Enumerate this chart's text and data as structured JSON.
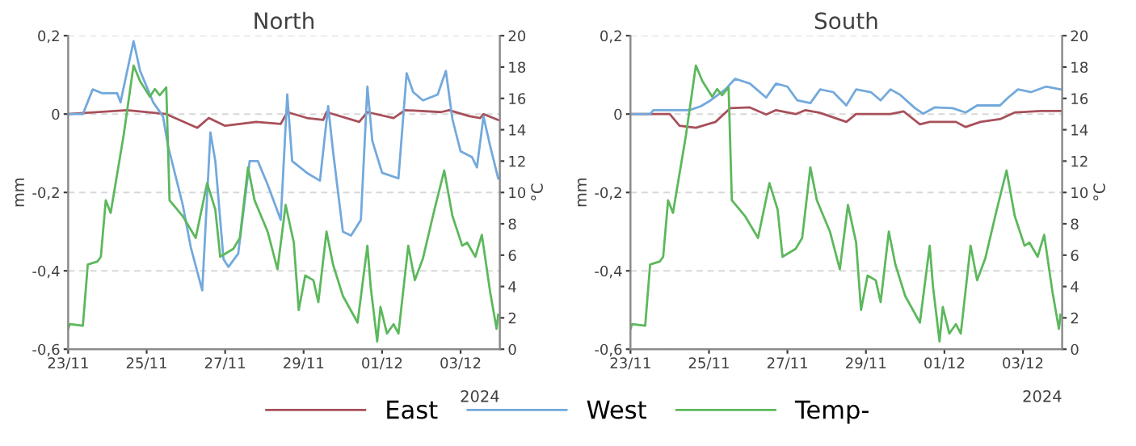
{
  "chart_data": [
    {
      "type": "line",
      "title": "North",
      "ylabel": "mm",
      "y2label": "°C",
      "annotations": [
        "2024"
      ],
      "legend": "bottom",
      "grid": "y",
      "xlim": [
        "2024-11-23",
        "2024-12-04"
      ],
      "xticks": [
        {
          "value": "2024-11-23",
          "label": "23/11"
        },
        {
          "value": "2024-11-25",
          "label": "25/11"
        },
        {
          "value": "2024-11-27",
          "label": "27/11"
        },
        {
          "value": "2024-11-29",
          "label": "29/11"
        },
        {
          "value": "2024-12-01",
          "label": "01/12"
        },
        {
          "value": "2024-12-03",
          "label": "03/12"
        }
      ],
      "ylim": [
        -0.6,
        0.2
      ],
      "yticks": [
        {
          "value": -0.6,
          "label": "-0,6"
        },
        {
          "value": -0.4,
          "label": "-0,4"
        },
        {
          "value": -0.2,
          "label": "-0,2"
        },
        0,
        {
          "value": 0.2,
          "label": "0,2"
        }
      ],
      "y2lim": [
        0,
        20
      ],
      "y2ticks": [
        0,
        2,
        4,
        6,
        8,
        10,
        12,
        14,
        16,
        18,
        20
      ],
      "series": [
        {
          "name": "East",
          "color": "#a8505a",
          "x": [
            "2024-11-23T00:00",
            "2024-11-24T12:00",
            "2024-11-25T12:00",
            "2024-11-26T07:00",
            "2024-11-26T14:00",
            "2024-11-27T00:00",
            "2024-11-27T19:00",
            "2024-11-28T10:00",
            "2024-11-28T14:00",
            "2024-11-29T02:00",
            "2024-11-29T12:00",
            "2024-11-29T14:00",
            "2024-11-30T10:00",
            "2024-11-30T15:00",
            "2024-12-01T07:00",
            "2024-12-01T14:00",
            "2024-12-02T12:00",
            "2024-12-02T17:00",
            "2024-12-03T05:00",
            "2024-12-03T12:00",
            "2024-12-03T14:00",
            "2024-12-03T23:00"
          ],
          "values": [
            0,
            0.01,
            0,
            -0.035,
            -0.01,
            -0.03,
            -0.02,
            -0.025,
            0.005,
            -0.01,
            -0.015,
            0.005,
            -0.02,
            0.005,
            -0.01,
            0.01,
            0.005,
            0.01,
            -0.005,
            -0.01,
            0,
            -0.015
          ]
        },
        {
          "name": "West",
          "color": "#72a9dc",
          "x": [
            "2024-11-23T00:00",
            "2024-11-23T09:00",
            "2024-11-23T15:00",
            "2024-11-23T21:00",
            "2024-11-24T06:00",
            "2024-11-24T08:00",
            "2024-11-24T16:00",
            "2024-11-24T20:00",
            "2024-11-25T04:00",
            "2024-11-25T10:00",
            "2024-11-25T13:00",
            "2024-11-25T22:00",
            "2024-11-26T03:00",
            "2024-11-26T10:00",
            "2024-11-26T15:00",
            "2024-11-26T18:00",
            "2024-11-26T23:00",
            "2024-11-27T02:00",
            "2024-11-27T08:00",
            "2024-11-27T15:00",
            "2024-11-27T20:00",
            "2024-11-28T02:00",
            "2024-11-28T10:00",
            "2024-11-28T14:00",
            "2024-11-28T17:00",
            "2024-11-29T02:00",
            "2024-11-29T10:00",
            "2024-11-29T15:00",
            "2024-11-29T18:00",
            "2024-11-30T00:00",
            "2024-11-30T05:00",
            "2024-11-30T11:00",
            "2024-11-30T15:00",
            "2024-11-30T18:00",
            "2024-12-01T00:00",
            "2024-12-01T10:00",
            "2024-12-01T15:00",
            "2024-12-01T19:00",
            "2024-12-02T01:00",
            "2024-12-02T10:00",
            "2024-12-02T15:00",
            "2024-12-02T19:00",
            "2024-12-03T00:00",
            "2024-12-03T07:00",
            "2024-12-03T10:00",
            "2024-12-03T14:00",
            "2024-12-03T18:00",
            "2024-12-03T23:00"
          ],
          "values": [
            0,
            0,
            0.063,
            0.053,
            0.053,
            0.03,
            0.186,
            0.11,
            0.03,
            -0.006,
            -0.08,
            -0.23,
            -0.34,
            -0.45,
            -0.047,
            -0.12,
            -0.37,
            -0.39,
            -0.356,
            -0.12,
            -0.12,
            -0.18,
            -0.27,
            0.05,
            -0.12,
            -0.15,
            -0.17,
            0.02,
            -0.095,
            -0.3,
            -0.31,
            -0.27,
            0.07,
            -0.068,
            -0.15,
            -0.164,
            0.104,
            0.056,
            0.035,
            0.05,
            0.11,
            -0.013,
            -0.095,
            -0.11,
            -0.136,
            -0.006,
            -0.08,
            -0.164
          ]
        },
        {
          "name": "Temp-",
          "color": "#5cb85c",
          "axis": "y2",
          "x": [
            "2024-11-23T00:00",
            "2024-11-23T01:00",
            "2024-11-23T09:00",
            "2024-11-23T12:00",
            "2024-11-23T18:00",
            "2024-11-23T20:00",
            "2024-11-23T23:00",
            "2024-11-24T02:00",
            "2024-11-24T10:00",
            "2024-11-24T16:00",
            "2024-11-24T20:00",
            "2024-11-25T02:00",
            "2024-11-25T05:00",
            "2024-11-25T08:00",
            "2024-11-25T12:00",
            "2024-11-25T14:00",
            "2024-11-25T22:00",
            "2024-11-26T06:00",
            "2024-11-26T13:00",
            "2024-11-26T18:00",
            "2024-11-26T21:00",
            "2024-11-27T05:00",
            "2024-11-27T09:00",
            "2024-11-27T14:00",
            "2024-11-27T18:00",
            "2024-11-28T02:00",
            "2024-11-28T08:00",
            "2024-11-28T13:00",
            "2024-11-28T18:00",
            "2024-11-28T21:00",
            "2024-11-29T01:00",
            "2024-11-29T06:00",
            "2024-11-29T09:00",
            "2024-11-29T14:00",
            "2024-11-29T18:00",
            "2024-11-30T00:00",
            "2024-11-30T09:00",
            "2024-11-30T15:00",
            "2024-11-30T17:00",
            "2024-11-30T21:00",
            "2024-11-30T23:00",
            "2024-12-01T03:00",
            "2024-12-01T07:00",
            "2024-12-01T10:00",
            "2024-12-01T16:00",
            "2024-12-01T20:00",
            "2024-12-02T01:00",
            "2024-12-02T08:00",
            "2024-12-02T14:00",
            "2024-12-02T19:00",
            "2024-12-03T01:00",
            "2024-12-03T04:00",
            "2024-12-03T09:00",
            "2024-12-03T13:00",
            "2024-12-03T18:00",
            "2024-12-03T22:00",
            "2024-12-03T23:00"
          ],
          "values": [
            1.3,
            1.6,
            1.5,
            5.4,
            5.6,
            5.9,
            9.5,
            8.7,
            13.7,
            18.1,
            17.1,
            16.1,
            16.6,
            16.2,
            16.7,
            9.5,
            8.5,
            7.1,
            10.6,
            8.9,
            5.9,
            6.4,
            7.1,
            11.6,
            9.5,
            7.5,
            5.1,
            9.2,
            6.8,
            2.5,
            4.7,
            4.4,
            3.0,
            7.5,
            5.4,
            3.4,
            1.7,
            6.6,
            4.0,
            0.5,
            2.7,
            1.0,
            1.6,
            1.0,
            6.6,
            4.4,
            5.8,
            8.9,
            11.4,
            8.5,
            6.6,
            6.8,
            5.9,
            7.3,
            3.7,
            1.3,
            2.2
          ]
        }
      ]
    },
    {
      "type": "line",
      "title": "South",
      "ylabel": "mm",
      "y2label": "°C",
      "annotations": [
        "2024"
      ],
      "legend": "bottom",
      "grid": "y",
      "xlim": [
        "2024-11-23",
        "2024-12-04"
      ],
      "xticks": [
        {
          "value": "2024-11-23",
          "label": "23/11"
        },
        {
          "value": "2024-11-25",
          "label": "25/11"
        },
        {
          "value": "2024-11-27",
          "label": "27/11"
        },
        {
          "value": "2024-11-29",
          "label": "29/11"
        },
        {
          "value": "2024-12-01",
          "label": "01/12"
        },
        {
          "value": "2024-12-03",
          "label": "03/12"
        }
      ],
      "ylim": [
        -0.6,
        0.2
      ],
      "yticks": [
        {
          "value": -0.6,
          "label": "-0,6"
        },
        {
          "value": -0.4,
          "label": "-0,4"
        },
        {
          "value": -0.2,
          "label": "-0,2"
        },
        0,
        {
          "value": 0.2,
          "label": "0,2"
        }
      ],
      "y2lim": [
        0,
        20
      ],
      "y2ticks": [
        0,
        2,
        4,
        6,
        8,
        10,
        12,
        14,
        16,
        18,
        20
      ],
      "series": [
        {
          "name": "East",
          "color": "#a8505a",
          "x": [
            "2024-11-23T00:00",
            "2024-11-23T12:00",
            "2024-11-24T00:00",
            "2024-11-24T06:00",
            "2024-11-24T16:00",
            "2024-11-25T04:00",
            "2024-11-25T13:00",
            "2024-11-26T01:00",
            "2024-11-26T11:00",
            "2024-11-26T17:00",
            "2024-11-27T05:00",
            "2024-11-27T11:00",
            "2024-11-27T20:00",
            "2024-11-28T12:00",
            "2024-11-28T18:00",
            "2024-11-29T15:00",
            "2024-11-29T23:00",
            "2024-11-30T09:00",
            "2024-11-30T15:00",
            "2024-12-01T07:00",
            "2024-12-01T13:00",
            "2024-12-01T22:00",
            "2024-12-02T10:00",
            "2024-12-02T19:00",
            "2024-12-03T11:00",
            "2024-12-03T23:00"
          ],
          "values": [
            0,
            0,
            0,
            -0.03,
            -0.035,
            -0.02,
            0.015,
            0.017,
            -0.001,
            0.01,
            0,
            0.01,
            0.003,
            -0.02,
            0,
            0,
            0.007,
            -0.026,
            -0.02,
            -0.02,
            -0.033,
            -0.02,
            -0.013,
            0.004,
            0.008,
            0.008
          ]
        },
        {
          "name": "West",
          "color": "#72a9dc",
          "x": [
            "2024-11-23T00:00",
            "2024-11-23T12:00",
            "2024-11-23T14:00",
            "2024-11-24T12:00",
            "2024-11-24T19:00",
            "2024-11-25T01:00",
            "2024-11-25T10:00",
            "2024-11-25T16:00",
            "2024-11-26T01:00",
            "2024-11-26T11:00",
            "2024-11-26T17:00",
            "2024-11-27T00:00",
            "2024-11-27T06:00",
            "2024-11-27T14:00",
            "2024-11-27T20:00",
            "2024-11-28T04:00",
            "2024-11-28T12:00",
            "2024-11-28T18:00",
            "2024-11-29T03:00",
            "2024-11-29T09:00",
            "2024-11-29T15:00",
            "2024-11-29T21:00",
            "2024-11-30T06:00",
            "2024-11-30T11:00",
            "2024-11-30T18:00",
            "2024-12-01T05:00",
            "2024-12-01T13:00",
            "2024-12-01T20:00",
            "2024-12-02T10:00",
            "2024-12-02T15:00",
            "2024-12-02T21:00",
            "2024-12-03T05:00",
            "2024-12-03T14:00",
            "2024-12-03T23:00"
          ],
          "values": [
            0,
            0,
            0.01,
            0.01,
            0.02,
            0.035,
            0.063,
            0.09,
            0.078,
            0.042,
            0.078,
            0.07,
            0.035,
            0.028,
            0.063,
            0.056,
            0.022,
            0.063,
            0.056,
            0.035,
            0.063,
            0.049,
            0.015,
            0.001,
            0.017,
            0.015,
            0.004,
            0.022,
            0.022,
            0.042,
            0.063,
            0.056,
            0.07,
            0.063
          ]
        },
        {
          "name": "Temp-",
          "color": "#5cb85c",
          "axis": "y2",
          "x": [
            "2024-11-23T00:00",
            "2024-11-23T01:00",
            "2024-11-23T09:00",
            "2024-11-23T12:00",
            "2024-11-23T18:00",
            "2024-11-23T20:00",
            "2024-11-23T23:00",
            "2024-11-24T02:00",
            "2024-11-24T10:00",
            "2024-11-24T16:00",
            "2024-11-24T20:00",
            "2024-11-25T02:00",
            "2024-11-25T05:00",
            "2024-11-25T08:00",
            "2024-11-25T12:00",
            "2024-11-25T14:00",
            "2024-11-25T22:00",
            "2024-11-26T06:00",
            "2024-11-26T13:00",
            "2024-11-26T18:00",
            "2024-11-26T21:00",
            "2024-11-27T05:00",
            "2024-11-27T09:00",
            "2024-11-27T14:00",
            "2024-11-27T18:00",
            "2024-11-28T02:00",
            "2024-11-28T08:00",
            "2024-11-28T13:00",
            "2024-11-28T18:00",
            "2024-11-28T21:00",
            "2024-11-29T01:00",
            "2024-11-29T06:00",
            "2024-11-29T09:00",
            "2024-11-29T14:00",
            "2024-11-29T18:00",
            "2024-11-30T00:00",
            "2024-11-30T09:00",
            "2024-11-30T15:00",
            "2024-11-30T17:00",
            "2024-11-30T21:00",
            "2024-11-30T23:00",
            "2024-12-01T03:00",
            "2024-12-01T07:00",
            "2024-12-01T10:00",
            "2024-12-01T16:00",
            "2024-12-01T20:00",
            "2024-12-02T01:00",
            "2024-12-02T08:00",
            "2024-12-02T14:00",
            "2024-12-02T19:00",
            "2024-12-03T01:00",
            "2024-12-03T04:00",
            "2024-12-03T09:00",
            "2024-12-03T13:00",
            "2024-12-03T18:00",
            "2024-12-03T22:00",
            "2024-12-03T23:00"
          ],
          "values": [
            1.3,
            1.6,
            1.5,
            5.4,
            5.6,
            5.9,
            9.5,
            8.7,
            13.7,
            18.1,
            17.1,
            16.1,
            16.6,
            16.2,
            16.7,
            9.5,
            8.5,
            7.1,
            10.6,
            8.9,
            5.9,
            6.4,
            7.1,
            11.6,
            9.5,
            7.5,
            5.1,
            9.2,
            6.8,
            2.5,
            4.7,
            4.4,
            3.0,
            7.5,
            5.4,
            3.4,
            1.7,
            6.6,
            4.0,
            0.5,
            2.7,
            1.0,
            1.6,
            1.0,
            6.6,
            4.4,
            5.8,
            8.9,
            11.4,
            8.5,
            6.6,
            6.8,
            5.9,
            7.3,
            3.7,
            1.3,
            2.2
          ]
        }
      ]
    }
  ]
}
